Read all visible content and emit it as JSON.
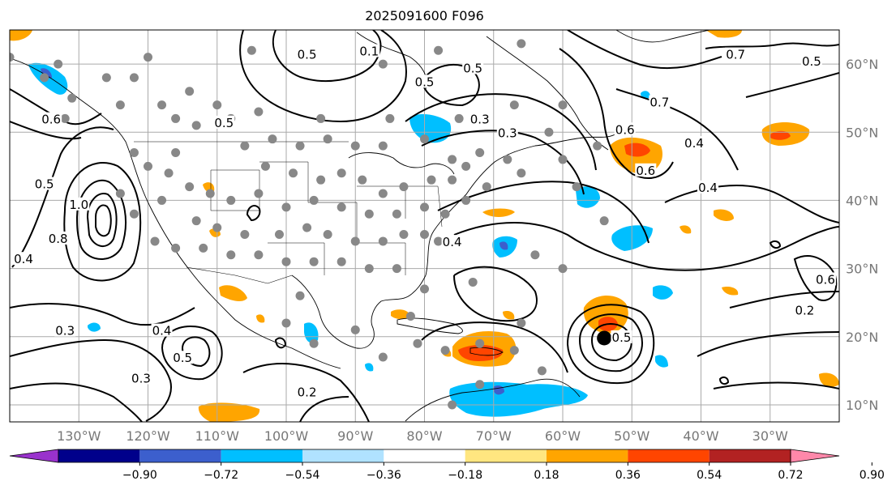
{
  "title": "2025091600 F096",
  "map": {
    "lat_range": [
      7.5,
      65
    ],
    "lon_range": [
      -140,
      -20
    ],
    "lat_labels": [
      "10°N",
      "20°N",
      "30°N",
      "40°N",
      "50°N",
      "60°N"
    ],
    "lat_values": [
      10,
      20,
      30,
      40,
      50,
      60
    ],
    "lon_labels": [
      "130°W",
      "120°W",
      "110°W",
      "100°W",
      "90°W",
      "80°W",
      "70°W",
      "60°W",
      "50°W",
      "40°W",
      "30°W"
    ],
    "lon_values": [
      -130,
      -120,
      -110,
      -100,
      -90,
      -80,
      -70,
      -60,
      -50,
      -40,
      -30
    ],
    "gridlines": true,
    "grid_color": "#aaaaaa",
    "coast_color": "#000000",
    "station_color": "#888888",
    "storm_marker": {
      "lat": 19.8,
      "lon": -54,
      "color": "#000000"
    }
  },
  "contour_labels": [
    {
      "text": "0.6",
      "lat": 51.5,
      "lon": -134
    },
    {
      "text": "0.5",
      "lat": 42,
      "lon": -135
    },
    {
      "text": "1.0",
      "lat": 39,
      "lon": -130
    },
    {
      "text": "0.8",
      "lat": 34,
      "lon": -133
    },
    {
      "text": "0.4",
      "lat": 31,
      "lon": -138
    },
    {
      "text": "0.3",
      "lat": 20.5,
      "lon": -132
    },
    {
      "text": "0.4",
      "lat": 20.5,
      "lon": -118
    },
    {
      "text": "0.5",
      "lat": 16.5,
      "lon": -115
    },
    {
      "text": "0.3",
      "lat": 13.5,
      "lon": -121
    },
    {
      "text": "0.2",
      "lat": 11.5,
      "lon": -97
    },
    {
      "text": "0.5",
      "lat": 51,
      "lon": -109
    },
    {
      "text": "0.5",
      "lat": 61,
      "lon": -97
    },
    {
      "text": "0.1",
      "lat": 61.5,
      "lon": -88
    },
    {
      "text": "0.5",
      "lat": 57,
      "lon": -80
    },
    {
      "text": "0.3",
      "lat": 51.5,
      "lon": -72
    },
    {
      "text": "0.3",
      "lat": 49.5,
      "lon": -68
    },
    {
      "text": "0.5",
      "lat": 59,
      "lon": -73
    },
    {
      "text": "0.4",
      "lat": 33.5,
      "lon": -76
    },
    {
      "text": "0.5",
      "lat": 19.5,
      "lon": -51.5
    },
    {
      "text": "0.6",
      "lat": 50,
      "lon": -51
    },
    {
      "text": "0.6",
      "lat": 44,
      "lon": -48
    },
    {
      "text": "0.7",
      "lat": 54,
      "lon": -46
    },
    {
      "text": "0.4",
      "lat": 48,
      "lon": -41
    },
    {
      "text": "0.4",
      "lat": 41.5,
      "lon": -39
    },
    {
      "text": "0.6",
      "lat": 28,
      "lon": -22
    },
    {
      "text": "0.2",
      "lat": 23.5,
      "lon": -25
    },
    {
      "text": "0.5",
      "lat": 60,
      "lon": -24
    },
    {
      "text": "0.7",
      "lat": 61,
      "lon": -35
    }
  ],
  "colorbar": {
    "ticks": [
      "−0.90",
      "−0.72",
      "−0.54",
      "−0.36",
      "−0.18",
      "0.18",
      "0.36",
      "0.54",
      "0.72",
      "0.90"
    ],
    "colors": [
      "#9932cc",
      "#00008b",
      "#3c5fcd",
      "#00bfff",
      "#b0e2ff",
      "#ffffff",
      "#ffe680",
      "#ffa500",
      "#ff4500",
      "#b22222",
      "#ff88aa"
    ]
  }
}
